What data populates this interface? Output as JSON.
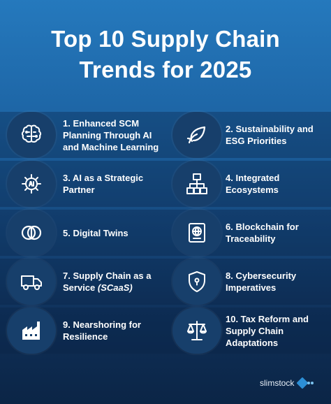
{
  "title": {
    "line1": "Top 10 Supply Chain",
    "line2": "Trends for 2025"
  },
  "trends": [
    {
      "label": "1. Enhanced SCM Planning Through AI and Machine Learning",
      "icon": "brain-circuit-icon"
    },
    {
      "label": "2. Sustainability and ESG Priorities",
      "icon": "leaf-hand-icon"
    },
    {
      "label": "3. AI as a Strategic Partner",
      "icon": "ai-gear-icon"
    },
    {
      "label": "4. Integrated Ecosystems",
      "icon": "network-icon"
    },
    {
      "label": "5. Digital Twins",
      "icon": "twin-circles-icon"
    },
    {
      "label": "6. Blockchain for Traceability",
      "icon": "blockchain-icon"
    },
    {
      "label": "7. Supply Chain as a Service",
      "label_em": "(SCaaS)",
      "icon": "truck-icon"
    },
    {
      "label": "8. Cybersecurity Imperatives",
      "icon": "shield-lock-icon"
    },
    {
      "label": "9. Nearshoring for Resilience",
      "icon": "factory-icon"
    },
    {
      "label": "10. Tax Reform and Supply Chain Adaptations",
      "icon": "scales-icon"
    }
  ],
  "brand": {
    "name": "slimstock"
  },
  "colors": {
    "background_top": "#2579bd",
    "background_bottom": "#0b2546",
    "badge": "#173f6b",
    "text": "#ffffff"
  }
}
